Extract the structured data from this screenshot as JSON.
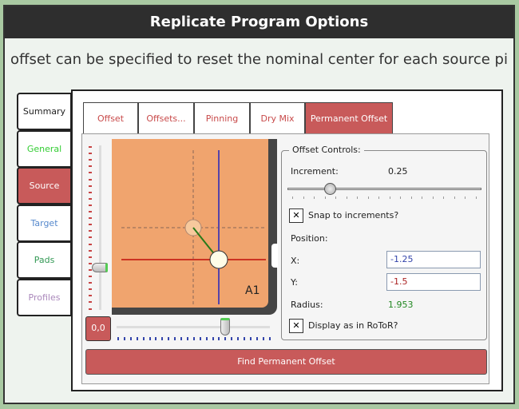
{
  "window": {
    "title": "Replicate Program Options",
    "subtitle": "offset can be specified to reset the nominal center for each source pi"
  },
  "side_tabs": [
    {
      "label": "Summary",
      "color": "#222222"
    },
    {
      "label": "General",
      "color": "#33cc33"
    },
    {
      "label": "Source",
      "color": "#ffffff",
      "active": true
    },
    {
      "label": "Target",
      "color": "#5588cc"
    },
    {
      "label": "Pads",
      "color": "#339955"
    },
    {
      "label": "Profiles",
      "color": "#aa88bb"
    }
  ],
  "tabs": [
    {
      "label": "Offset"
    },
    {
      "label": "Offsets..."
    },
    {
      "label": "Pinning"
    },
    {
      "label": "Dry Mix"
    },
    {
      "label": "Permanent Offset",
      "active": true
    }
  ],
  "plate": {
    "well_label": "A1",
    "reset_label": "0,0"
  },
  "offset_controls": {
    "legend": "Offset Controls:",
    "increment_label": "Increment:",
    "increment_value": "0.25",
    "snap_label": "Snap to increments?",
    "snap_checked": true,
    "position_label": "Position:",
    "x_label": "X:",
    "x_value": "-1.25",
    "y_label": "Y:",
    "y_value": "-1.5",
    "radius_label": "Radius:",
    "radius_value": "1.953",
    "rotor_label": "Display as in RoToR?",
    "rotor_checked": true
  },
  "find_button": "Find Permanent Offset",
  "colors": {
    "accent": "#c85a5a",
    "plate": "#f0a46e",
    "x_axis": "#5544aa",
    "y_axis": "#cc3322"
  }
}
